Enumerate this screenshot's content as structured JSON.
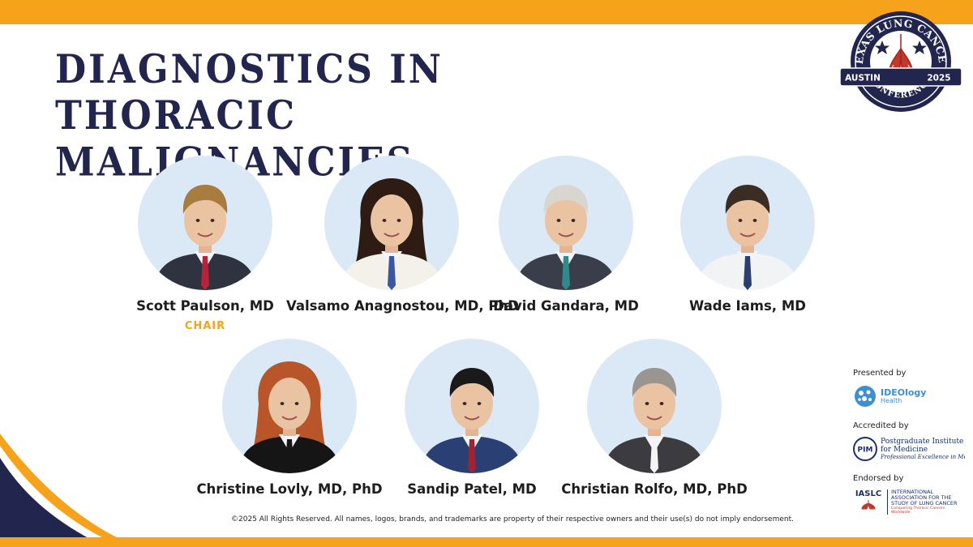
{
  "colors": {
    "accent": "#f7a21b",
    "navy": "#22264f",
    "photo_bg": "#dbe9f7"
  },
  "title": {
    "line1": "DIAGNOSTICS IN",
    "line2": "THORACIC MALIGNANCIES"
  },
  "logo": {
    "top_text": "TEXAS LUNG CANCER",
    "city": "AUSTIN",
    "year": "2025",
    "bottom_text": "CONFERENCE"
  },
  "speakers": [
    {
      "name": "Scott Paulson, MD",
      "role": "CHAIR",
      "hair": "#a87b3e",
      "suit": "#2f3340",
      "tie": "#b8233a"
    },
    {
      "name": "Valsamo Anagnostou, MD, PhD",
      "hair": "#2e1c14",
      "suit": "#f4f1ea",
      "tie": "#3a56a3"
    },
    {
      "name": "David Gandara, MD",
      "hair": "#d9d6cf",
      "suit": "#3a3d4a",
      "tie": "#2f8a8c"
    },
    {
      "name": "Wade Iams, MD",
      "hair": "#3a2d24",
      "suit": "#f2f3f5",
      "tie": "#2b3f6e"
    },
    {
      "name": "Christine Lovly, MD, PhD",
      "hair": "#b8562a",
      "suit": "#151515",
      "tie": "#151515"
    },
    {
      "name": "Sandip Patel, MD",
      "hair": "#1a1a1a",
      "suit": "#2a3f73",
      "tie": "#9e2433"
    },
    {
      "name": "Christian Rolfo, MD, PhD",
      "hair": "#9a9590",
      "suit": "#3c3c40",
      "tie": "#f4f4f4"
    }
  ],
  "sponsors": {
    "presented_label": "Presented by",
    "ideology_name": "IDEOlogy",
    "ideology_sub": "Health",
    "accredited_label": "Accredited by",
    "pim_abbrev": "PIM",
    "pim_name": "Postgraduate Institute for Medicine",
    "pim_tagline": "Professional Excellence in Medical Education",
    "endorsed_label": "Endorsed by",
    "iaslc_abbrev": "IASLC",
    "iaslc_name": "INTERNATIONAL ASSOCIATION FOR THE STUDY OF LUNG CANCER",
    "iaslc_tagline": "Conquering Thoracic Cancers Worldwide"
  },
  "footer": {
    "copyright": "©2025 All Rights Reserved. All names, logos, brands, and trademarks are property of their respective owners and their use(s) do not imply endorsement."
  }
}
